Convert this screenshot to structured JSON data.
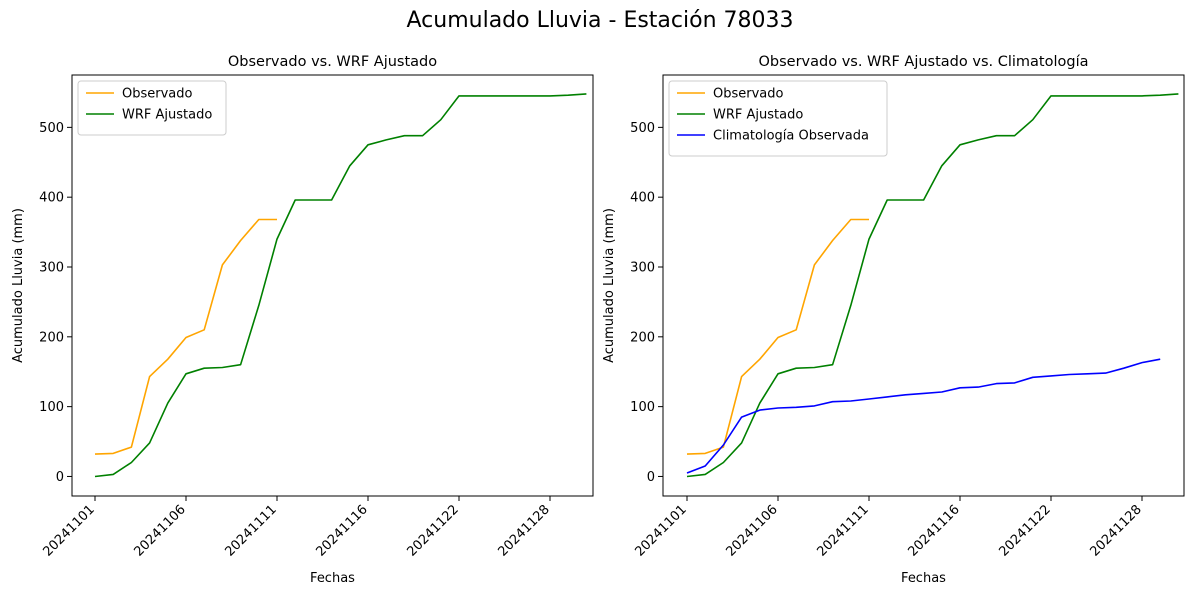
{
  "suptitle": "Acumulado Lluvia - Estación 78033",
  "colors": {
    "observado": "#FFA500",
    "wrf": "#008000",
    "climatologia": "#0000FF"
  },
  "chart_data": [
    {
      "type": "line",
      "title": "Observado vs. WRF Ajustado",
      "xlabel": "Fechas",
      "ylabel": "Acumulado Lluvia (mm)",
      "ylim": [
        -28,
        575
      ],
      "yticks": [
        0,
        100,
        200,
        300,
        400,
        500
      ],
      "xticks": [
        {
          "index": 0,
          "label": "20241101"
        },
        {
          "index": 5,
          "label": "20241106"
        },
        {
          "index": 10,
          "label": "20241111"
        },
        {
          "index": 15,
          "label": "20241116"
        },
        {
          "index": 20,
          "label": "20241122"
        },
        {
          "index": 25,
          "label": "20241128"
        }
      ],
      "grid": false,
      "legend_position": "top-left",
      "series": [
        {
          "name": "Observado",
          "color": "#FFA500",
          "values": [
            32,
            33,
            42,
            143,
            168,
            199,
            210,
            303,
            338,
            368,
            368
          ]
        },
        {
          "name": "WRF Ajustado",
          "color": "#008000",
          "values": [
            0,
            3,
            20,
            48,
            105,
            147,
            155,
            156,
            160,
            245,
            340,
            396,
            396,
            396,
            445,
            475,
            482,
            488,
            488,
            511,
            545,
            545,
            545,
            545,
            545,
            545,
            546,
            548
          ]
        }
      ]
    },
    {
      "type": "line",
      "title": "Observado vs. WRF Ajustado vs. Climatología",
      "xlabel": "Fechas",
      "ylabel": "Acumulado Lluvia (mm)",
      "ylim": [
        -28,
        575
      ],
      "yticks": [
        0,
        100,
        200,
        300,
        400,
        500
      ],
      "xticks": [
        {
          "index": 0,
          "label": "20241101"
        },
        {
          "index": 5,
          "label": "20241106"
        },
        {
          "index": 10,
          "label": "20241111"
        },
        {
          "index": 15,
          "label": "20241116"
        },
        {
          "index": 20,
          "label": "20241122"
        },
        {
          "index": 25,
          "label": "20241128"
        }
      ],
      "grid": false,
      "legend_position": "top-left",
      "series": [
        {
          "name": "Observado",
          "color": "#FFA500",
          "values": [
            32,
            33,
            42,
            143,
            168,
            199,
            210,
            303,
            338,
            368,
            368
          ]
        },
        {
          "name": "WRF Ajustado",
          "color": "#008000",
          "values": [
            0,
            3,
            20,
            48,
            105,
            147,
            155,
            156,
            160,
            245,
            340,
            396,
            396,
            396,
            445,
            475,
            482,
            488,
            488,
            511,
            545,
            545,
            545,
            545,
            545,
            545,
            546,
            548
          ]
        },
        {
          "name": "Climatología Observada",
          "color": "#0000FF",
          "values": [
            5,
            15,
            45,
            85,
            95,
            98,
            99,
            101,
            107,
            108,
            111,
            114,
            117,
            119,
            121,
            127,
            128,
            133,
            134,
            142,
            144,
            146,
            147,
            148,
            155,
            163,
            168
          ]
        }
      ]
    }
  ]
}
